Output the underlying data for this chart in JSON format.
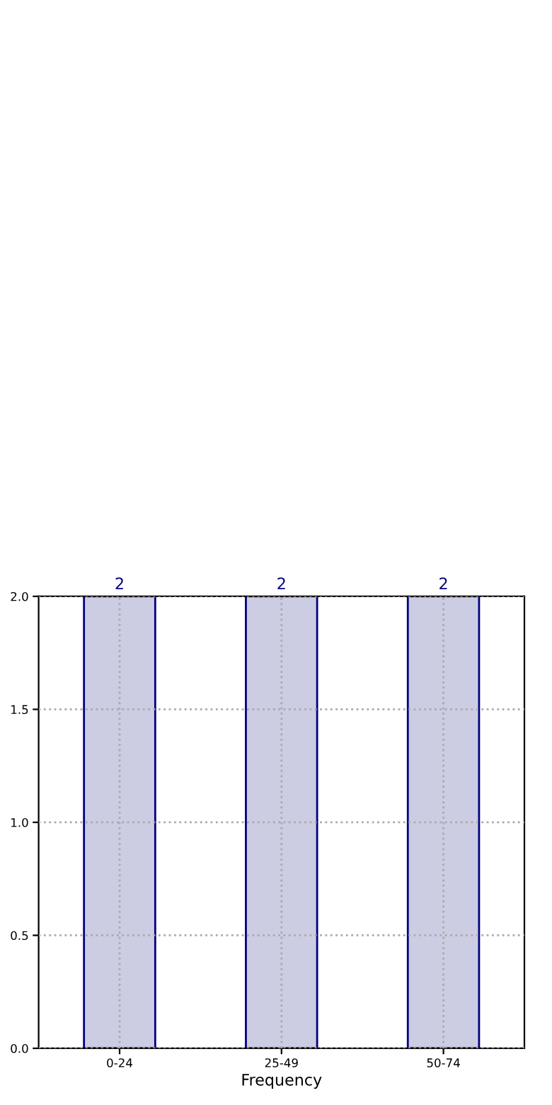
{
  "chart_data": {
    "type": "bar",
    "xlabel": "Frequency",
    "categories": [
      "0-24",
      "25-49",
      "50-74"
    ],
    "values": [
      2,
      2,
      2
    ],
    "color": "#ccccE3",
    "data_labels": true,
    "ylim": [
      0,
      2
    ],
    "yticks": [
      {
        "value": 0,
        "label": "0.0"
      },
      {
        "value": 0.5,
        "label": "0.5"
      },
      {
        "value": 1,
        "label": "1.0"
      },
      {
        "value": 1.5,
        "label": "1.5"
      },
      {
        "value": 2,
        "label": "2.0"
      }
    ],
    "grid": true
  }
}
